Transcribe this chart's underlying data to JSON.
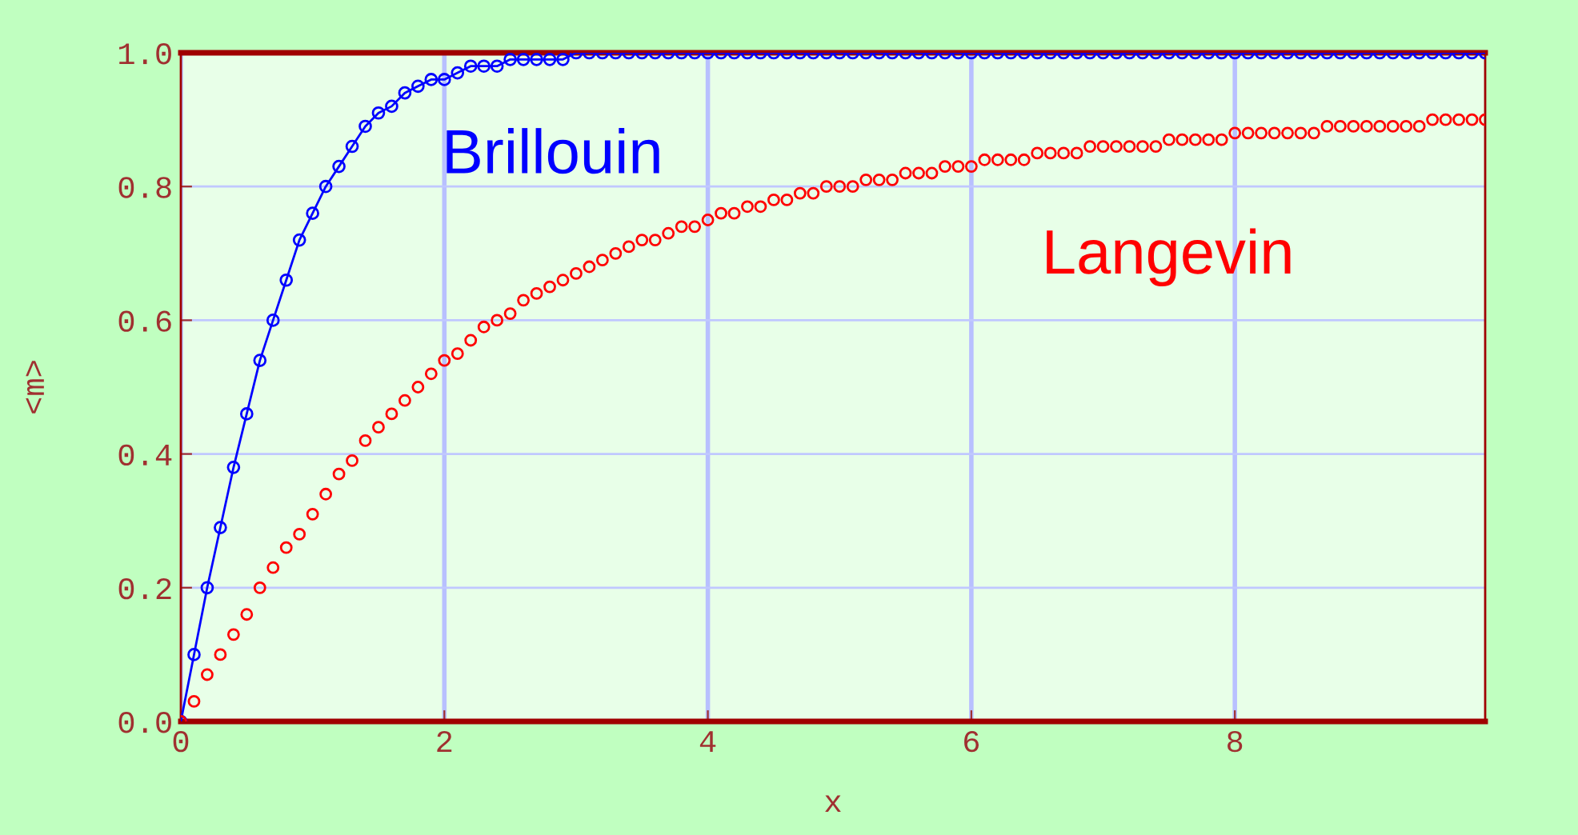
{
  "chart_data": {
    "type": "line",
    "xlabel": "x",
    "ylabel": "<m>",
    "x": [
      0,
      0.1,
      0.2,
      0.3,
      0.4,
      0.5,
      0.6,
      0.7,
      0.8,
      0.9,
      1.0,
      1.1,
      1.2,
      1.3,
      1.4,
      1.5,
      1.6,
      1.7,
      1.8,
      1.9,
      2.0,
      2.1,
      2.2,
      2.3,
      2.4,
      2.5,
      2.6,
      2.7,
      2.8,
      2.9,
      3.0,
      3.1,
      3.2,
      3.3,
      3.4,
      3.5,
      3.6,
      3.7,
      3.8,
      3.9,
      4.0,
      4.1,
      4.2,
      4.3,
      4.4,
      4.5,
      4.6,
      4.7,
      4.8,
      4.9,
      5.0,
      5.1,
      5.2,
      5.3,
      5.4,
      5.5,
      5.6,
      5.7,
      5.8,
      5.9,
      6.0,
      6.1,
      6.2,
      6.3,
      6.4,
      6.5,
      6.6,
      6.7,
      6.8,
      6.9,
      7.0,
      7.1,
      7.2,
      7.3,
      7.4,
      7.5,
      7.6,
      7.7,
      7.8,
      7.9,
      8.0,
      8.1,
      8.2,
      8.3,
      8.4,
      8.5,
      8.6,
      8.7,
      8.8,
      8.9,
      9.0,
      9.1,
      9.2,
      9.3,
      9.4,
      9.5,
      9.6,
      9.7,
      9.8,
      9.9
    ],
    "series": [
      {
        "name": "Brillouin",
        "color": "#0000ff",
        "marker": "circle",
        "line_style": "solid",
        "values": [
          0,
          0.1,
          0.2,
          0.29,
          0.38,
          0.46,
          0.54,
          0.6,
          0.66,
          0.72,
          0.76,
          0.8,
          0.83,
          0.86,
          0.89,
          0.91,
          0.92,
          0.94,
          0.95,
          0.96,
          0.96,
          0.97,
          0.98,
          0.98,
          0.98,
          0.99,
          0.99,
          0.99,
          0.99,
          0.99,
          1.0,
          1.0,
          1.0,
          1.0,
          1.0,
          1.0,
          1.0,
          1.0,
          1.0,
          1.0,
          1.0,
          1.0,
          1.0,
          1.0,
          1.0,
          1.0,
          1.0,
          1.0,
          1.0,
          1.0,
          1.0,
          1.0,
          1.0,
          1.0,
          1.0,
          1.0,
          1.0,
          1.0,
          1.0,
          1.0,
          1.0,
          1.0,
          1.0,
          1.0,
          1.0,
          1.0,
          1.0,
          1.0,
          1.0,
          1.0,
          1.0,
          1.0,
          1.0,
          1.0,
          1.0,
          1.0,
          1.0,
          1.0,
          1.0,
          1.0,
          1.0,
          1.0,
          1.0,
          1.0,
          1.0,
          1.0,
          1.0,
          1.0,
          1.0,
          1.0,
          1.0,
          1.0,
          1.0,
          1.0,
          1.0,
          1.0,
          1.0,
          1.0,
          1.0,
          1.0
        ]
      },
      {
        "name": "Langevin",
        "color": "#ff0000",
        "type": "scatter",
        "marker": "circle",
        "values": [
          0,
          0.03,
          0.07,
          0.1,
          0.13,
          0.16,
          0.2,
          0.23,
          0.26,
          0.28,
          0.31,
          0.34,
          0.37,
          0.39,
          0.42,
          0.44,
          0.46,
          0.48,
          0.5,
          0.52,
          0.54,
          0.55,
          0.57,
          0.59,
          0.6,
          0.61,
          0.63,
          0.64,
          0.65,
          0.66,
          0.67,
          0.68,
          0.69,
          0.7,
          0.71,
          0.72,
          0.72,
          0.73,
          0.74,
          0.74,
          0.75,
          0.76,
          0.76,
          0.77,
          0.77,
          0.78,
          0.78,
          0.79,
          0.79,
          0.8,
          0.8,
          0.8,
          0.81,
          0.81,
          0.81,
          0.82,
          0.82,
          0.82,
          0.83,
          0.83,
          0.83,
          0.84,
          0.84,
          0.84,
          0.84,
          0.85,
          0.85,
          0.85,
          0.85,
          0.86,
          0.86,
          0.86,
          0.86,
          0.86,
          0.86,
          0.87,
          0.87,
          0.87,
          0.87,
          0.87,
          0.88,
          0.88,
          0.88,
          0.88,
          0.88,
          0.88,
          0.88,
          0.89,
          0.89,
          0.89,
          0.89,
          0.89,
          0.89,
          0.89,
          0.89,
          0.9,
          0.9,
          0.9,
          0.9,
          0.9
        ]
      }
    ],
    "xlim": [
      0,
      9.9
    ],
    "ylim": [
      0,
      1.0
    ],
    "xticks": [
      0,
      2,
      4,
      6,
      8
    ],
    "yticks": [
      {
        "value": 0,
        "label": "0.0"
      },
      {
        "value": 0.2,
        "label": "0.2"
      },
      {
        "value": 0.4,
        "label": "0.4"
      },
      {
        "value": 0.6,
        "label": "0.6"
      },
      {
        "value": 0.8,
        "label": "0.8"
      },
      {
        "value": 1.0,
        "label": "1.0"
      }
    ],
    "grid": true,
    "legend": false
  }
}
